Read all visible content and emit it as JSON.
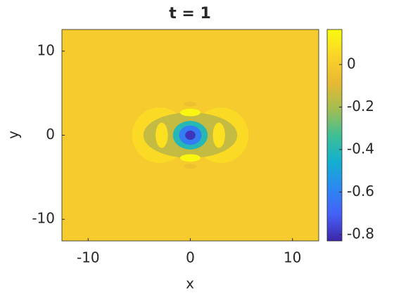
{
  "chart_data": {
    "type": "contour",
    "title": "t = 1",
    "x_label": "x",
    "y_label": "y",
    "xlim": [
      -12.57,
      12.57
    ],
    "ylim": [
      -12.57,
      12.57
    ],
    "xticks": [
      -10,
      0,
      10
    ],
    "yticks": [
      -10,
      0,
      10
    ],
    "background_value": 0.0,
    "blobs": [
      {
        "x": -3,
        "y": 0,
        "rx": 2.7,
        "ry": 3.3,
        "value": 0.06
      },
      {
        "x": 3,
        "y": 0,
        "rx": 2.7,
        "ry": 3.3,
        "value": 0.06
      },
      {
        "x": 0,
        "y": 0,
        "rx": 3.2,
        "ry": 2.6,
        "value": 0.06
      },
      {
        "x": 0,
        "y": 0,
        "rx": 4.6,
        "ry": 2.7,
        "value": -0.15
      },
      {
        "x": -2.8,
        "y": 0,
        "rx": 0.6,
        "ry": 1.5,
        "value": 0.08
      },
      {
        "x": 2.8,
        "y": 0,
        "rx": 0.6,
        "ry": 1.5,
        "value": 0.08
      },
      {
        "x": 0,
        "y": 2.7,
        "rx": 1.0,
        "ry": 0.45,
        "value": 0.15
      },
      {
        "x": 0,
        "y": -2.7,
        "rx": 1.0,
        "ry": 0.45,
        "value": 0.15
      },
      {
        "x": 0,
        "y": 3.7,
        "rx": 0.6,
        "ry": 0.3,
        "value": -0.05
      },
      {
        "x": 0,
        "y": -3.7,
        "rx": 0.6,
        "ry": 0.3,
        "value": -0.05
      },
      {
        "x": 0,
        "y": 0,
        "rx": 1.7,
        "ry": 1.7,
        "value": -0.4
      },
      {
        "x": 0,
        "y": 0,
        "rx": 1.1,
        "ry": 1.15,
        "value": -0.62
      },
      {
        "x": 0,
        "y": 0,
        "rx": 0.5,
        "ry": 0.55,
        "value": -0.8
      }
    ],
    "clim": [
      -0.83,
      0.165
    ],
    "cticks": [
      -0.8,
      -0.6,
      -0.4,
      -0.2,
      0
    ],
    "colormap": [
      "#3e26a8",
      "#4560f7",
      "#2c88f1",
      "#12b0cf",
      "#3fbf95",
      "#a4bd52",
      "#e8b932",
      "#fbd42a",
      "#f9fb0e"
    ]
  }
}
